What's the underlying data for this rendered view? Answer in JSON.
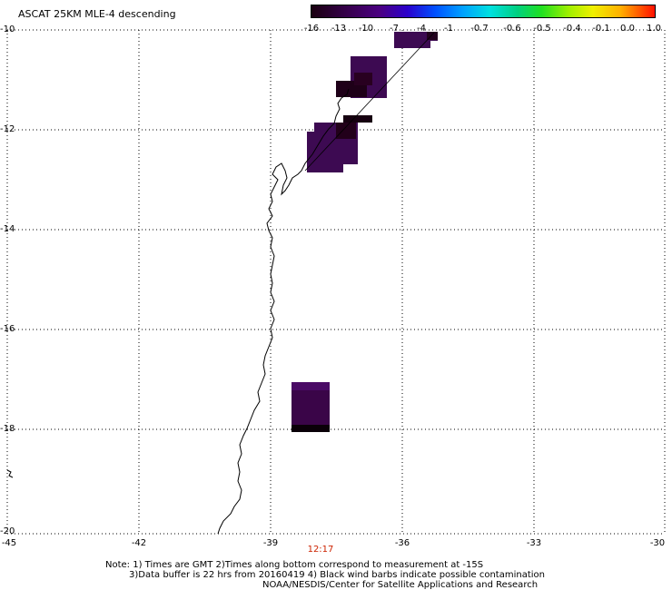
{
  "title": "ASCAT 25KM MLE-4 descending",
  "colorbar": {
    "colors": [
      "#1a0010",
      "#3a0055",
      "#4b0082",
      "#2a00cc",
      "#0050ff",
      "#00a0ff",
      "#00e0e0",
      "#00d080",
      "#20e020",
      "#a0f000",
      "#f0f000",
      "#ffb000",
      "#ff6000",
      "#ff1000"
    ],
    "tick_labels": [
      "-16",
      "-13",
      "-10",
      "-7",
      "-4",
      "-1",
      "-0.7",
      "-0.6",
      "-0.5",
      "-0.4",
      "-0.1",
      "0.0",
      "1.0"
    ]
  },
  "axes": {
    "lat_labels": [
      "-10",
      "-12",
      "-14",
      "-16",
      "-18",
      "-20"
    ],
    "lon_labels": [
      "-45",
      "-42",
      "-39",
      "-36",
      "-33",
      "-30"
    ]
  },
  "time_label": "12:17",
  "notes": {
    "line1": "Note: 1) Times are GMT 2)Times along bottom correspond to measurement at -15S",
    "line2": "3)Data buffer is 22 hrs from 20160419 4) Black wind barbs indicate possible contamination",
    "line3": "NOAA/NESDIS/Center for Satellite Applications and Research"
  },
  "colors": {
    "dark_purple": "#3d0a52",
    "black_cell": "#160010"
  }
}
